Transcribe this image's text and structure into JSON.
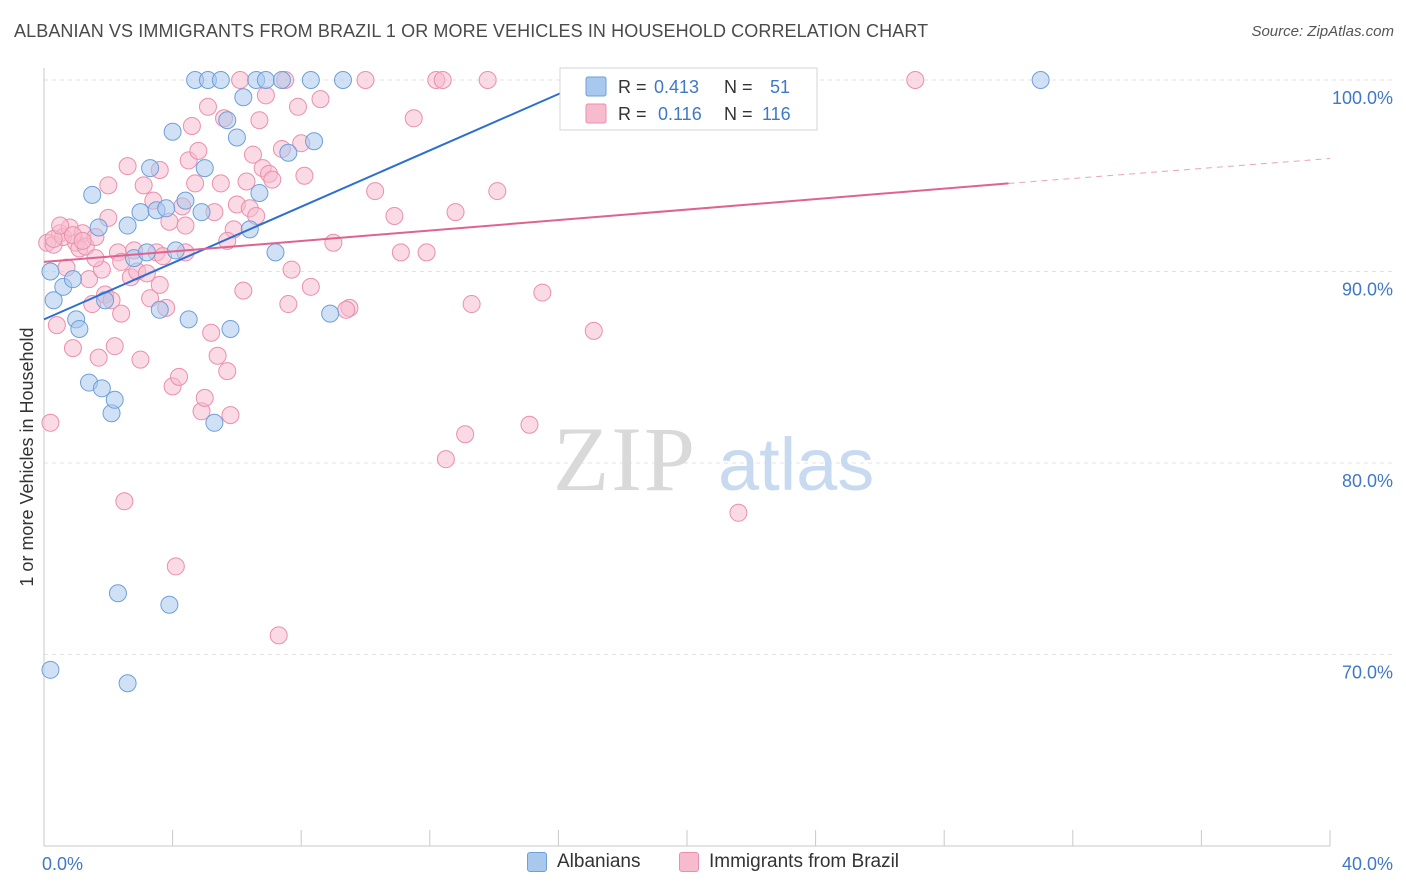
{
  "title": "ALBANIAN VS IMMIGRANTS FROM BRAZIL 1 OR MORE VEHICLES IN HOUSEHOLD CORRELATION CHART",
  "source": "Source: ZipAtlas.com",
  "watermark": {
    "zip": "ZIP",
    "atlas": "atlas"
  },
  "colors": {
    "blue_fill": "#a9c8ee",
    "blue_stroke": "#6e9fd8",
    "blue_line": "#2c6fcf",
    "pink_fill": "#f6bccd",
    "pink_stroke": "#eb8fac",
    "pink_line": "#e0628f",
    "axis_text": "#3f78c7",
    "grid": "#e3e3e3"
  },
  "legend": {
    "rows": [
      {
        "r_label": "R =",
        "r_value": "0.413",
        "n_label": "N =",
        "n_value": "51"
      },
      {
        "r_label": "R =",
        "r_value": "0.116",
        "n_label": "N =",
        "n_value": "116"
      }
    ]
  },
  "bottom_legend": [
    "Albanians",
    "Immigrants from Brazil"
  ],
  "chart_data": {
    "type": "scatter",
    "title": "ALBANIAN VS IMMIGRANTS FROM BRAZIL 1 OR MORE VEHICLES IN HOUSEHOLD CORRELATION CHART",
    "xlabel": "",
    "ylabel": "1 or more Vehicles in Household",
    "xlim": [
      0,
      40
    ],
    "ylim": [
      61.5,
      102
    ],
    "x_tick_labels": [
      "0.0%",
      "40.0%"
    ],
    "y_ticks": [
      70,
      80,
      90,
      100
    ],
    "y_tick_labels": [
      "70.0%",
      "80.0%",
      "90.0%",
      "100.0%"
    ],
    "grid": true,
    "legend_position": "top-center",
    "series": [
      {
        "name": "Albanians",
        "r": 0.413,
        "n": 51,
        "trend": {
          "x": [
            0.0,
            17.0
          ],
          "y": [
            87.5,
            100.0
          ]
        },
        "points": [
          [
            0.3,
            88.5
          ],
          [
            0.6,
            89.2
          ],
          [
            0.9,
            89.6
          ],
          [
            1.0,
            87.5
          ],
          [
            1.1,
            87.0
          ],
          [
            1.4,
            84.2
          ],
          [
            1.5,
            94.0
          ],
          [
            1.7,
            92.3
          ],
          [
            1.8,
            83.9
          ],
          [
            1.9,
            88.5
          ],
          [
            2.1,
            82.6
          ],
          [
            2.2,
            83.3
          ],
          [
            2.3,
            73.2
          ],
          [
            2.6,
            68.5
          ],
          [
            2.6,
            92.4
          ],
          [
            2.8,
            90.7
          ],
          [
            3.0,
            93.1
          ],
          [
            3.2,
            91.0
          ],
          [
            3.3,
            95.4
          ],
          [
            3.5,
            93.2
          ],
          [
            3.6,
            88.0
          ],
          [
            3.8,
            93.3
          ],
          [
            3.9,
            72.6
          ],
          [
            4.0,
            97.3
          ],
          [
            4.1,
            91.1
          ],
          [
            4.4,
            93.7
          ],
          [
            4.5,
            87.5
          ],
          [
            4.7,
            100.0
          ],
          [
            4.9,
            93.1
          ],
          [
            5.0,
            95.4
          ],
          [
            5.1,
            100.0
          ],
          [
            5.3,
            82.1
          ],
          [
            5.5,
            100.0
          ],
          [
            5.7,
            97.9
          ],
          [
            5.8,
            87.0
          ],
          [
            6.0,
            97.0
          ],
          [
            6.2,
            99.1
          ],
          [
            6.4,
            92.2
          ],
          [
            6.6,
            100.0
          ],
          [
            6.7,
            94.1
          ],
          [
            6.9,
            100.0
          ],
          [
            7.2,
            91.0
          ],
          [
            7.4,
            100.0
          ],
          [
            7.6,
            96.2
          ],
          [
            8.3,
            100.0
          ],
          [
            8.4,
            96.8
          ],
          [
            8.9,
            87.8
          ],
          [
            9.3,
            100.0
          ],
          [
            0.2,
            69.2
          ],
          [
            31.0,
            100.0
          ],
          [
            0.2,
            90.0
          ]
        ]
      },
      {
        "name": "Immigrants from Brazil",
        "r": 0.116,
        "n": 116,
        "trend": {
          "x": [
            0.0,
            30.0
          ],
          "y": [
            90.5,
            94.6
          ]
        },
        "trend_dashed": {
          "x": [
            30.0,
            40.0
          ],
          "y": [
            94.6,
            95.9
          ]
        },
        "points": [
          [
            0.1,
            91.5
          ],
          [
            0.2,
            82.1
          ],
          [
            0.3,
            91.4
          ],
          [
            0.4,
            87.2
          ],
          [
            0.5,
            92.0
          ],
          [
            0.6,
            91.8
          ],
          [
            0.7,
            90.2
          ],
          [
            0.8,
            92.3
          ],
          [
            0.9,
            86.0
          ],
          [
            1.0,
            91.5
          ],
          [
            1.1,
            91.2
          ],
          [
            1.2,
            92.0
          ],
          [
            1.3,
            91.3
          ],
          [
            1.4,
            89.6
          ],
          [
            1.5,
            88.3
          ],
          [
            1.6,
            91.8
          ],
          [
            1.7,
            85.5
          ],
          [
            1.8,
            90.1
          ],
          [
            1.9,
            88.8
          ],
          [
            2.0,
            94.5
          ],
          [
            2.1,
            88.5
          ],
          [
            2.2,
            86.1
          ],
          [
            2.3,
            91.0
          ],
          [
            2.4,
            87.8
          ],
          [
            2.5,
            78.0
          ],
          [
            2.6,
            95.5
          ],
          [
            2.7,
            89.7
          ],
          [
            2.8,
            91.1
          ],
          [
            2.9,
            90.0
          ],
          [
            3.0,
            85.4
          ],
          [
            3.1,
            94.5
          ],
          [
            3.2,
            89.9
          ],
          [
            3.3,
            88.6
          ],
          [
            3.4,
            93.7
          ],
          [
            3.5,
            91.0
          ],
          [
            3.6,
            95.3
          ],
          [
            3.7,
            90.8
          ],
          [
            3.8,
            88.1
          ],
          [
            3.9,
            92.6
          ],
          [
            4.0,
            84.0
          ],
          [
            4.1,
            74.6
          ],
          [
            4.2,
            84.5
          ],
          [
            4.3,
            93.4
          ],
          [
            4.4,
            91.0
          ],
          [
            4.5,
            95.8
          ],
          [
            4.6,
            97.6
          ],
          [
            4.7,
            94.6
          ],
          [
            4.8,
            96.3
          ],
          [
            4.9,
            82.7
          ],
          [
            5.0,
            83.4
          ],
          [
            5.1,
            98.6
          ],
          [
            5.2,
            86.8
          ],
          [
            5.3,
            93.1
          ],
          [
            5.4,
            85.6
          ],
          [
            5.5,
            94.6
          ],
          [
            5.6,
            98.0
          ],
          [
            5.7,
            84.8
          ],
          [
            5.8,
            82.5
          ],
          [
            5.9,
            92.2
          ],
          [
            6.0,
            93.5
          ],
          [
            6.1,
            100.0
          ],
          [
            6.2,
            89.0
          ],
          [
            6.3,
            94.7
          ],
          [
            6.4,
            93.3
          ],
          [
            6.5,
            96.1
          ],
          [
            6.6,
            92.9
          ],
          [
            6.7,
            97.9
          ],
          [
            6.8,
            95.4
          ],
          [
            6.9,
            99.2
          ],
          [
            7.0,
            95.1
          ],
          [
            7.1,
            94.8
          ],
          [
            7.3,
            71.0
          ],
          [
            7.4,
            96.4
          ],
          [
            7.5,
            100.0
          ],
          [
            7.6,
            88.3
          ],
          [
            7.7,
            90.1
          ],
          [
            7.9,
            98.6
          ],
          [
            8.0,
            96.7
          ],
          [
            8.1,
            95.0
          ],
          [
            8.3,
            89.2
          ],
          [
            8.6,
            99.0
          ],
          [
            9.0,
            91.5
          ],
          [
            9.5,
            88.1
          ],
          [
            10.0,
            100.0
          ],
          [
            10.3,
            94.2
          ],
          [
            10.9,
            92.9
          ],
          [
            11.1,
            91.0
          ],
          [
            11.5,
            98.0
          ],
          [
            11.9,
            91.0
          ],
          [
            12.2,
            100.0
          ],
          [
            12.4,
            100.0
          ],
          [
            12.5,
            80.2
          ],
          [
            12.8,
            93.1
          ],
          [
            13.1,
            81.5
          ],
          [
            13.3,
            88.3
          ],
          [
            13.8,
            100.0
          ],
          [
            14.1,
            94.2
          ],
          [
            15.1,
            82.0
          ],
          [
            15.5,
            88.9
          ],
          [
            16.9,
            100.0
          ],
          [
            17.1,
            86.9
          ],
          [
            18.9,
            100.0
          ],
          [
            21.0,
            100.0
          ],
          [
            21.6,
            77.4
          ],
          [
            27.1,
            100.0
          ],
          [
            0.3,
            91.7
          ],
          [
            0.5,
            92.4
          ],
          [
            0.9,
            91.9
          ],
          [
            1.2,
            91.6
          ],
          [
            1.6,
            90.7
          ],
          [
            2.0,
            92.8
          ],
          [
            2.4,
            90.5
          ],
          [
            3.6,
            89.3
          ],
          [
            4.4,
            92.4
          ],
          [
            5.7,
            91.6
          ],
          [
            9.4,
            88.0
          ]
        ]
      }
    ]
  }
}
